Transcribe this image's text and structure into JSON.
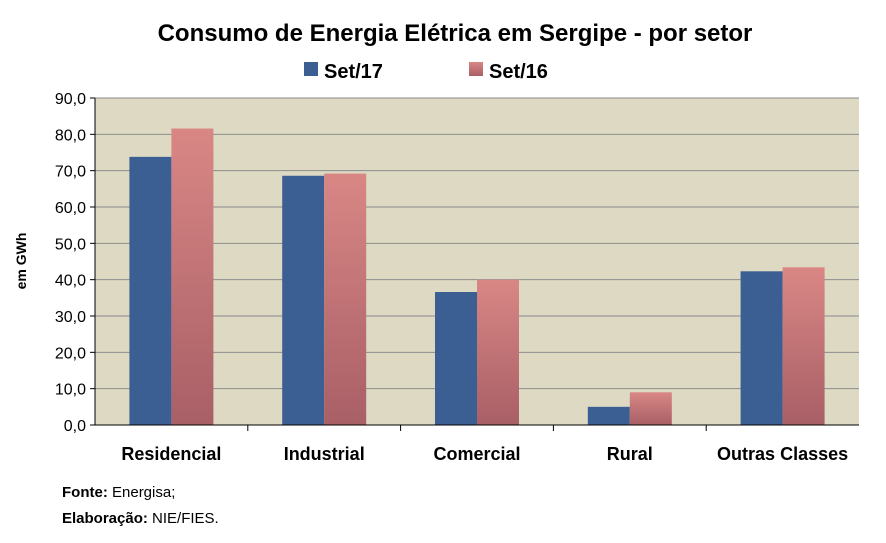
{
  "chart_data": {
    "type": "bar",
    "title": "Consumo de Energia Elétrica em Sergipe - por setor",
    "ylabel": "em GWh",
    "xlabel": "",
    "ylim": [
      0,
      90
    ],
    "ytick_step": 10,
    "ytick_labels": [
      "0,0",
      "10,0",
      "20,0",
      "30,0",
      "40,0",
      "50,0",
      "60,0",
      "70,0",
      "80,0",
      "90,0"
    ],
    "grid": true,
    "legend_position": "top-center",
    "categories": [
      "Residencial",
      "Industrial",
      "Comercial",
      "Rural",
      "Outras Classes"
    ],
    "series": [
      {
        "name": "Set/17",
        "values": [
          73.8,
          68.6,
          36.6,
          5.0,
          42.3
        ]
      },
      {
        "name": "Set/16",
        "values": [
          81.6,
          69.2,
          40.0,
          9.0,
          43.4
        ]
      }
    ]
  },
  "colors": {
    "series1": "#3c5f93",
    "series2_top": "#d98785",
    "series2_bottom": "#a85f66",
    "plot_bg": "#ddd9c3",
    "grid": "#8c8c8c"
  },
  "footer": {
    "source_label": "Fonte:",
    "source_value": "Energisa;",
    "author_label": "Elaboração:",
    "author_value": "NIE/FIES."
  }
}
